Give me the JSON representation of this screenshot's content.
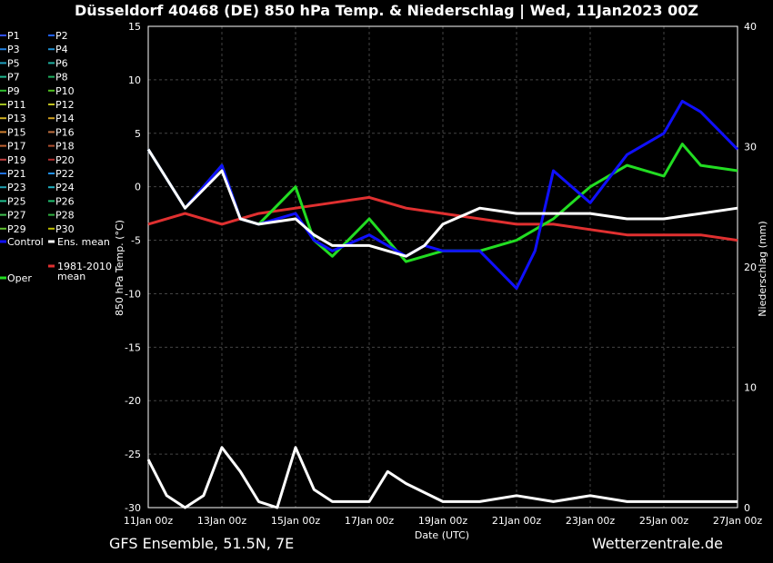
{
  "title": "Düsseldorf 40468 (DE)  850 hPa Temp. & Niederschlag | Wed, 11Jan2023 00Z",
  "footer": {
    "model": "GFS Ensemble, 51.5N, 7E",
    "site": "Wetterzentrale.de"
  },
  "chart_data": {
    "type": "line",
    "xlabel": "Date (UTC)",
    "ylabel_left": "850 hPa Temp. (°C)",
    "ylabel_right": "Niederschlag (mm)",
    "x_ticks": [
      "11Jan 00z",
      "13Jan 00z",
      "15Jan 00z",
      "17Jan 00z",
      "19Jan 00z",
      "21Jan 00z",
      "23Jan 00z",
      "25Jan 00z",
      "27Jan 00z"
    ],
    "xlim_hours": [
      0,
      384
    ],
    "ylim_temp": [
      -30,
      15
    ],
    "yticks_temp": [
      15,
      10,
      5,
      0,
      -5,
      -10,
      -15,
      -20,
      -25,
      -30
    ],
    "ylim_precip": [
      0,
      40
    ],
    "yticks_precip": [
      40,
      30,
      20,
      10,
      0
    ],
    "grid": true,
    "legend": {
      "placement": "left",
      "members": [
        {
          "name": "P1",
          "color": "#3050ff"
        },
        {
          "name": "P2",
          "color": "#2060ff"
        },
        {
          "name": "P3",
          "color": "#2080e0"
        },
        {
          "name": "P4",
          "color": "#2090d0"
        },
        {
          "name": "P5",
          "color": "#20a0c0"
        },
        {
          "name": "P6",
          "color": "#20b0a0"
        },
        {
          "name": "P7",
          "color": "#20b890"
        },
        {
          "name": "P8",
          "color": "#20b060"
        },
        {
          "name": "P9",
          "color": "#30c030"
        },
        {
          "name": "P10",
          "color": "#50c020"
        },
        {
          "name": "P11",
          "color": "#a0c020"
        },
        {
          "name": "P12",
          "color": "#c0c020"
        },
        {
          "name": "P13",
          "color": "#d0b020"
        },
        {
          "name": "P14",
          "color": "#d0a020"
        },
        {
          "name": "P15",
          "color": "#d08030"
        },
        {
          "name": "P16",
          "color": "#c07040"
        },
        {
          "name": "P17",
          "color": "#c06030"
        },
        {
          "name": "P18",
          "color": "#b05030"
        },
        {
          "name": "P19",
          "color": "#c04040"
        },
        {
          "name": "P20",
          "color": "#b03030"
        },
        {
          "name": "P21",
          "color": "#2070e0"
        },
        {
          "name": "P22",
          "color": "#2090f0"
        },
        {
          "name": "P23",
          "color": "#20a0b0"
        },
        {
          "name": "P24",
          "color": "#20b0c0"
        },
        {
          "name": "P25",
          "color": "#20c090"
        },
        {
          "name": "P26",
          "color": "#20c070"
        },
        {
          "name": "P27",
          "color": "#40c050"
        },
        {
          "name": "P28",
          "color": "#30b040"
        },
        {
          "name": "P29",
          "color": "#60c030"
        },
        {
          "name": "P30",
          "color": "#c0c000"
        }
      ],
      "control": {
        "name": "Control",
        "color": "#1010ff"
      },
      "ens_mean": {
        "name": "Ens. mean",
        "color": "#ffffff"
      },
      "oper": {
        "name": "Oper",
        "color": "#22dd22"
      },
      "climate": {
        "name": "1981-2010 mean",
        "color": "#e03030"
      }
    },
    "series": [
      {
        "name": "Ens. mean",
        "unit": "°C",
        "x": [
          0,
          24,
          48,
          60,
          72,
          96,
          108,
          120,
          144,
          168,
          180,
          192,
          216,
          240,
          264,
          288,
          312,
          336,
          360,
          384
        ],
        "y": [
          3.5,
          -2,
          1.5,
          -3,
          -3.5,
          -3,
          -4.5,
          -5.5,
          -5.5,
          -6.5,
          -5.5,
          -3.5,
          -2,
          -2.5,
          -2.5,
          -2.5,
          -3,
          -3,
          -2.5,
          -2
        ]
      },
      {
        "name": "Control",
        "unit": "°C",
        "x": [
          0,
          24,
          48,
          60,
          72,
          96,
          108,
          120,
          144,
          168,
          180,
          192,
          216,
          240,
          252,
          264,
          288,
          312,
          336,
          348,
          360,
          384
        ],
        "y": [
          3.5,
          -2,
          2,
          -3,
          -3.5,
          -2.5,
          -5,
          -6,
          -4.5,
          -6.5,
          -5.5,
          -6,
          -6,
          -9.5,
          -6,
          1.5,
          -1.5,
          3,
          5,
          8,
          7,
          3.5
        ]
      },
      {
        "name": "Oper",
        "unit": "°C",
        "x": [
          0,
          24,
          48,
          60,
          72,
          96,
          108,
          120,
          144,
          168,
          180,
          192,
          216,
          240,
          264,
          288,
          312,
          336,
          348,
          360,
          384
        ],
        "y": [
          3.5,
          -2,
          2,
          -3,
          -3.5,
          0,
          -5,
          -6.5,
          -3,
          -7,
          -6.5,
          -6,
          -6,
          -5,
          -3,
          0,
          2,
          1,
          4,
          2,
          1.5
        ]
      },
      {
        "name": "1981-2010 mean",
        "unit": "°C",
        "x": [
          0,
          24,
          48,
          72,
          96,
          120,
          144,
          168,
          192,
          216,
          240,
          264,
          288,
          312,
          336,
          360,
          384
        ],
        "y": [
          -3.5,
          -2.5,
          -3.5,
          -2.5,
          -2,
          -1.5,
          -1,
          -2,
          -2.5,
          -3,
          -3.5,
          -3.5,
          -4,
          -4.5,
          -4.5,
          -4.5,
          -5
        ]
      },
      {
        "name": "Ens. mean precip",
        "unit": "mm",
        "x": [
          0,
          12,
          24,
          36,
          48,
          60,
          72,
          84,
          96,
          108,
          120,
          144,
          156,
          168,
          192,
          216,
          240,
          264,
          288,
          312,
          336,
          360,
          384
        ],
        "y": [
          4,
          1,
          0,
          1,
          5,
          3,
          0.5,
          0,
          5,
          1.5,
          0.5,
          0.5,
          3,
          2,
          0.5,
          0.5,
          1,
          0.5,
          1,
          0.5,
          0.5,
          0.5,
          0.5
        ]
      }
    ]
  }
}
